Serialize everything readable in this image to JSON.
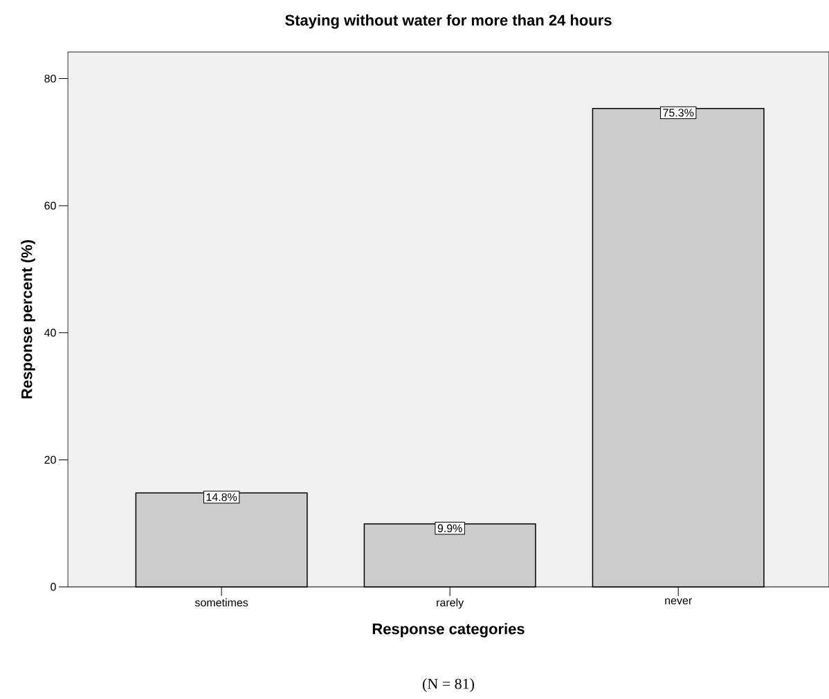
{
  "chart_data": {
    "type": "bar",
    "title": "Staying without water for more than 24 hours",
    "xlabel": "Response categories",
    "ylabel": "Response percent (%)",
    "categories": [
      "sometimes",
      "rarely",
      "never"
    ],
    "values": [
      14.8,
      9.9,
      75.3
    ],
    "value_labels": [
      "14.8%",
      "9.9%",
      "75.3%"
    ],
    "color": "#cccccc",
    "ylim": [
      0,
      84.2
    ],
    "yticks": [
      0,
      20,
      40,
      60,
      80
    ],
    "annotations": [
      "(N = 81)"
    ]
  }
}
